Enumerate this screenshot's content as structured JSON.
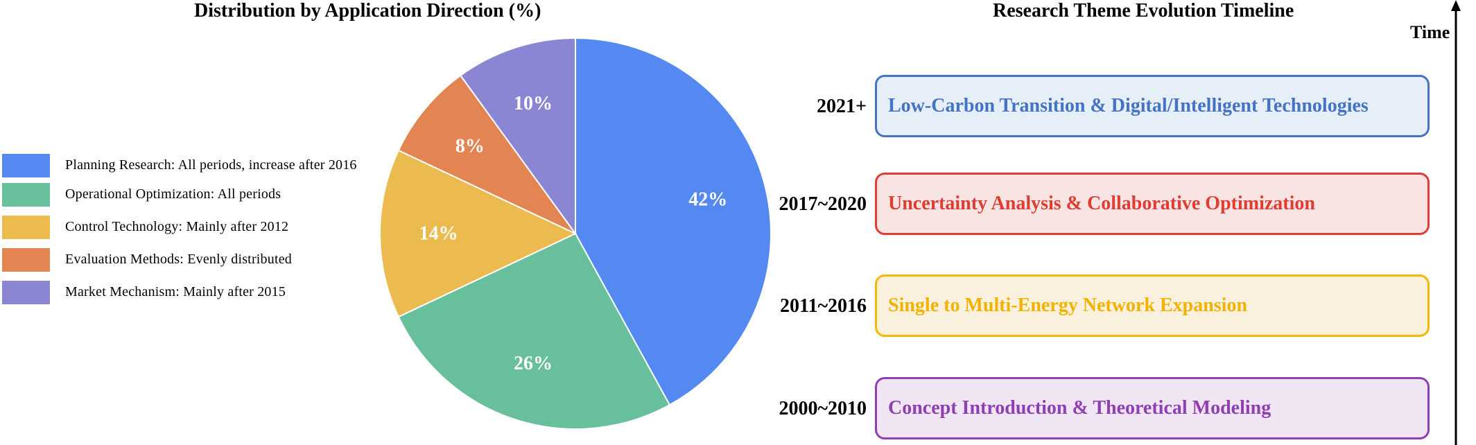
{
  "pie_panel": {
    "title": "Distribution by Application Direction (%)"
  },
  "timeline_panel": {
    "title": "Research Theme Evolution Timeline",
    "axis_label": "Time",
    "entries": [
      {
        "period": "2021+",
        "theme": "Low-Carbon Transition & Digital/Intelligent Technologies",
        "border": "#4472c4",
        "fill": "#e6eef8",
        "text": "#4472c4"
      },
      {
        "period": "2017~2020",
        "theme": "Uncertainty Analysis & Collaborative Optimization",
        "border": "#e03c31",
        "fill": "#f9e4e4",
        "text": "#e03c31"
      },
      {
        "period": "2011~2016",
        "theme": "Single to Multi-Energy Network Expansion",
        "border": "#f5b800",
        "fill": "#f9f1dd",
        "text": "#f2b200"
      },
      {
        "period": "2000~2010",
        "theme": "Concept Introduction & Theoretical Modeling",
        "border": "#8e3fb4",
        "fill": "#f0e5f3",
        "text": "#8e3fb4"
      }
    ]
  },
  "chart_data": {
    "type": "pie",
    "title": "Distribution by Application Direction (%)",
    "legend_placement": "left",
    "start_angle_deg": 90,
    "direction": "clockwise",
    "slices": [
      {
        "legend": "Planning Research: All periods, increase after 2016",
        "value": 42,
        "label": "42%",
        "color": "#5589f2"
      },
      {
        "legend": "Operational Optimization: All periods",
        "value": 26,
        "label": "26%",
        "color": "#67bf9b"
      },
      {
        "legend": "Control Technology: Mainly after 2012",
        "value": 14,
        "label": "14%",
        "color": "#ecbb50"
      },
      {
        "legend": "Evaluation Methods: Evenly distributed",
        "value": 8,
        "label": "8%",
        "color": "#e28553"
      },
      {
        "legend": "Market Mechanism: Mainly after 2015",
        "value": 10,
        "label": "10%",
        "color": "#8b86d4"
      }
    ]
  }
}
